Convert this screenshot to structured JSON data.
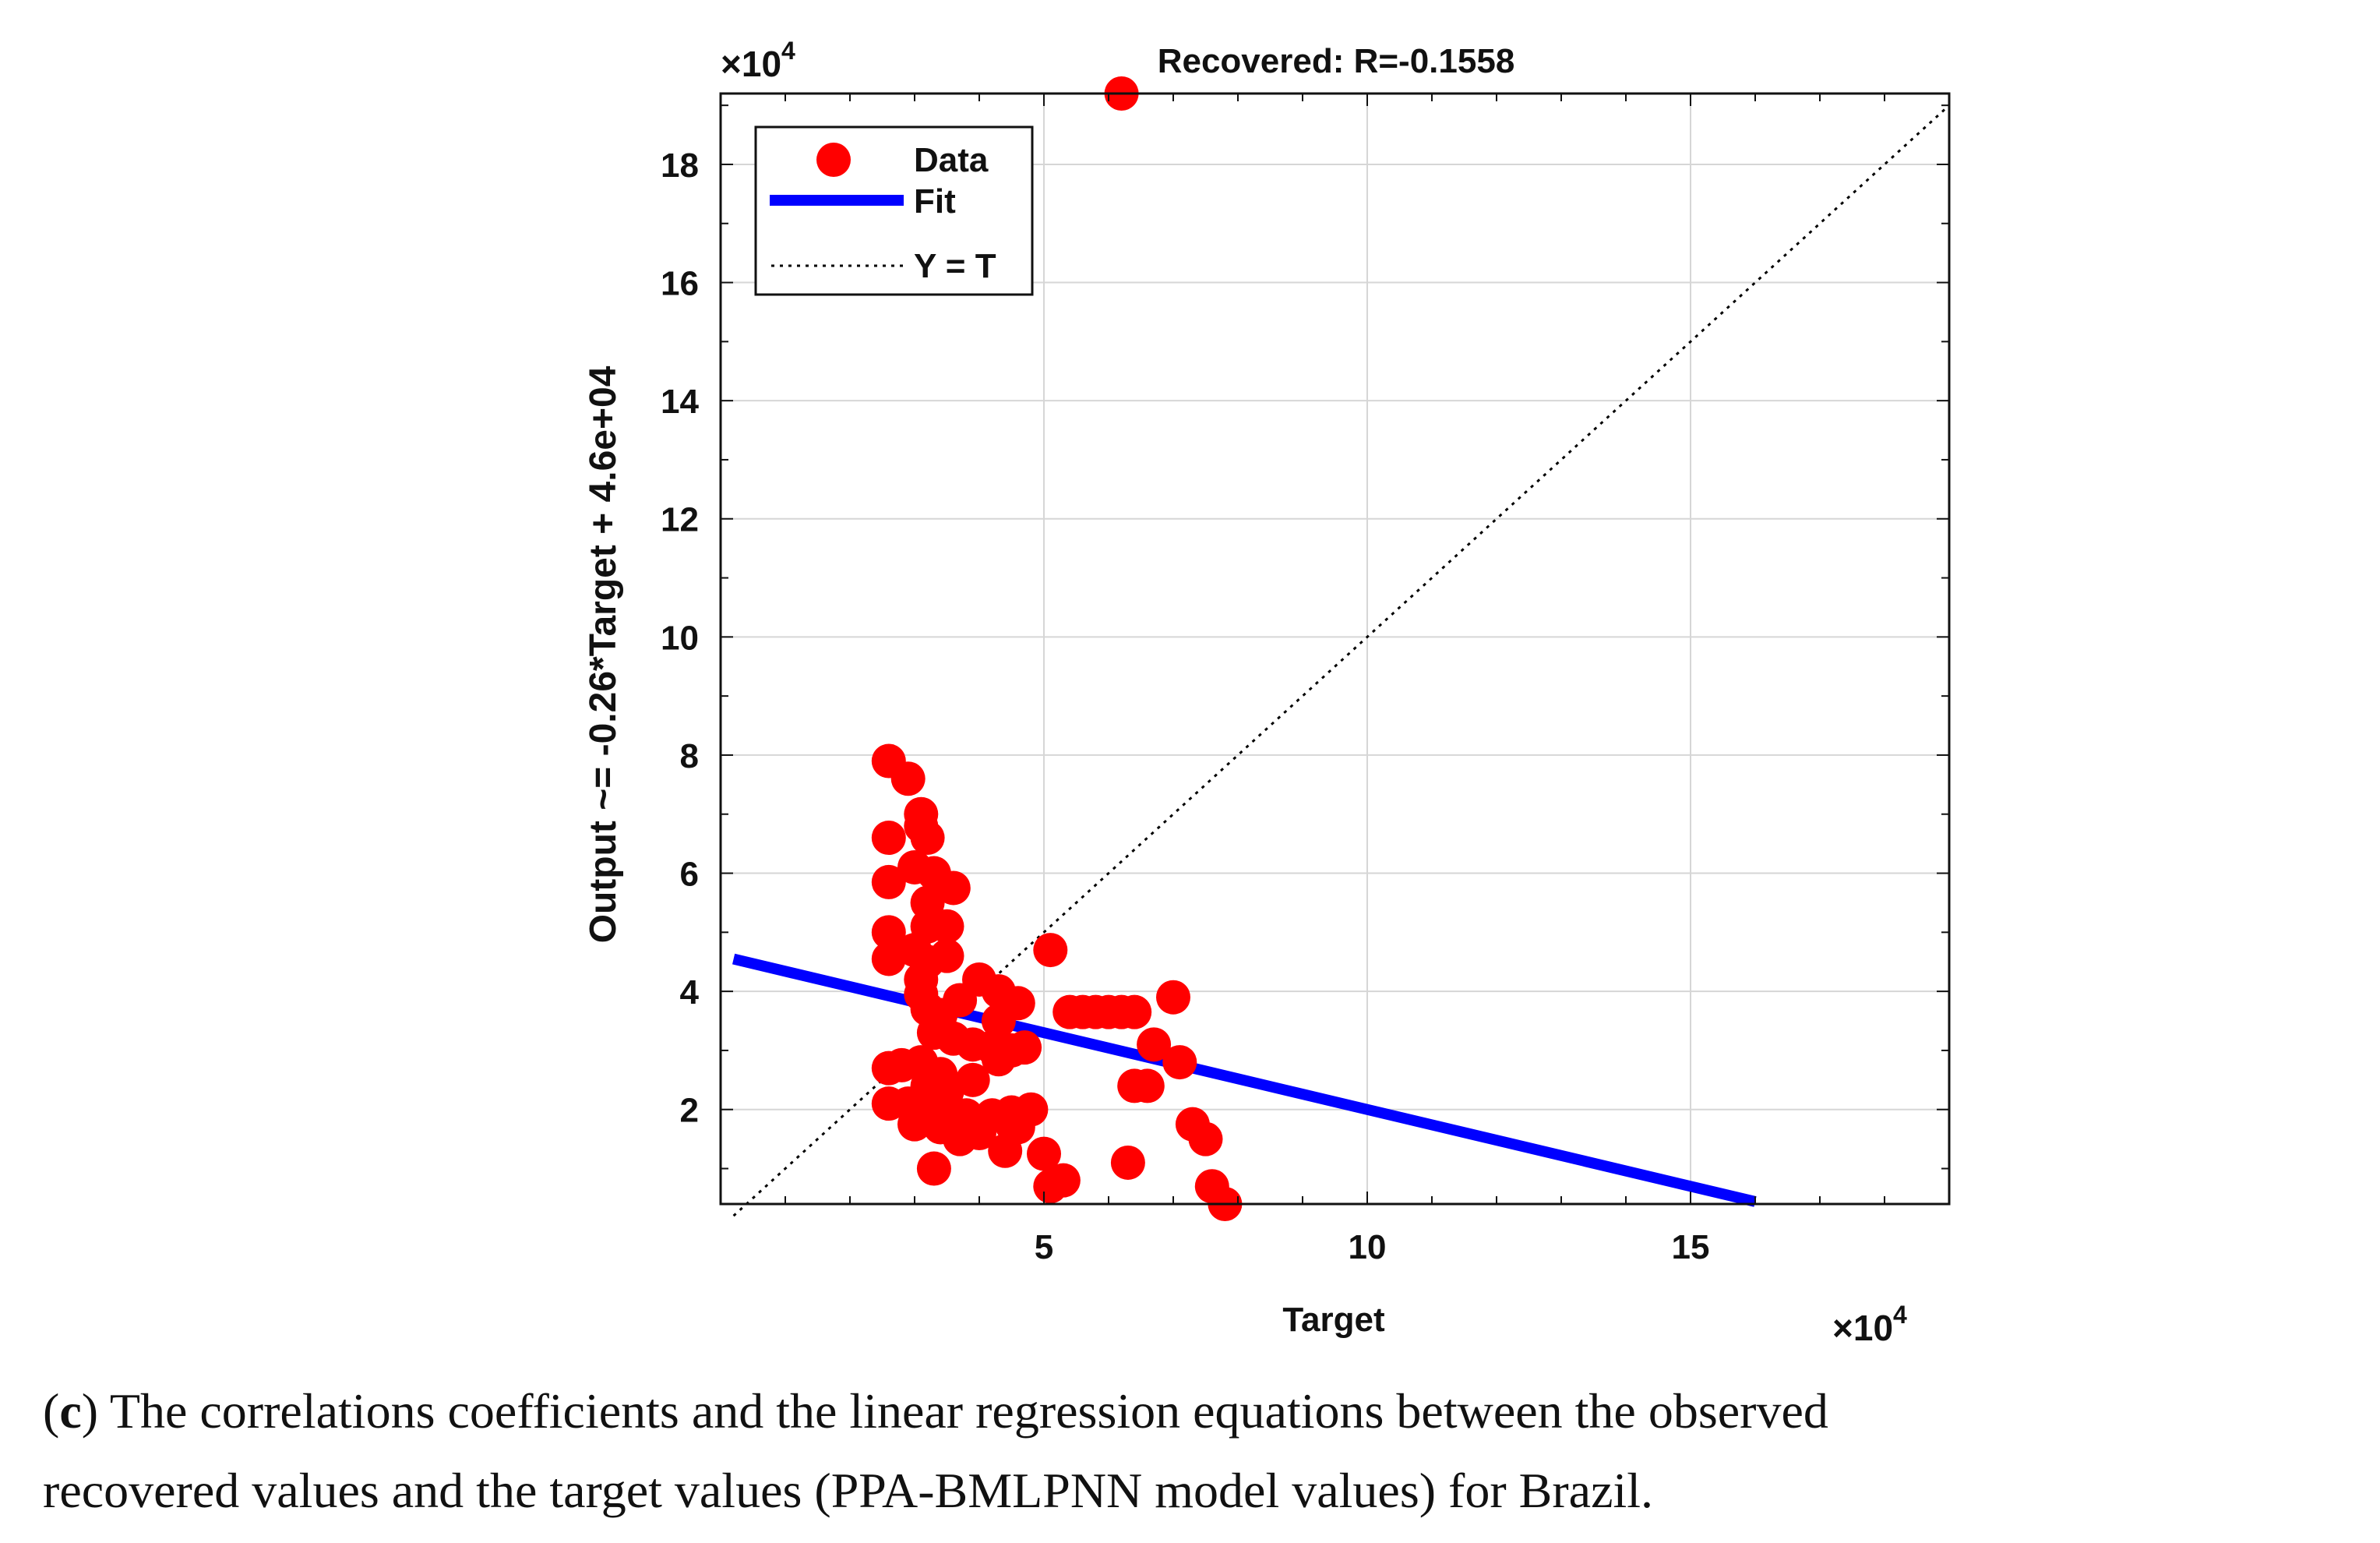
{
  "chart_data": {
    "type": "scatter",
    "title": "Recovered: R=-0.1558",
    "xlabel": "Target",
    "ylabel": "Output ~= -0.26*Target + 4.6e+04",
    "x_multiplier": "×10",
    "x_exponent": "4",
    "y_multiplier": "×10",
    "y_exponent": "4",
    "xlim": [
      0,
      19
    ],
    "ylim": [
      0.4,
      19.2
    ],
    "xticks": [
      5,
      10,
      15
    ],
    "xtick_labels": [
      "5",
      "10",
      "15"
    ],
    "yticks": [
      2,
      4,
      6,
      8,
      10,
      12,
      14,
      16,
      18
    ],
    "ytick_labels": [
      "2",
      "4",
      "6",
      "8",
      "10",
      "12",
      "14",
      "16",
      "18"
    ],
    "grid": true,
    "legend_position": "top-left",
    "legend": [
      {
        "label": "Data",
        "marker": "circle",
        "color": "#ff0000"
      },
      {
        "label": "Fit",
        "marker": "line",
        "color": "#0000ff"
      },
      {
        "label": "Y = T",
        "marker": "dotted",
        "color": "#000000"
      }
    ],
    "fit": {
      "slope": -0.26,
      "intercept": 4.6,
      "x_range": [
        0.2,
        16.0
      ],
      "color": "#0000ff"
    },
    "identity": {
      "x_range": [
        0.2,
        19
      ],
      "color": "#000000"
    },
    "series": [
      {
        "name": "Data",
        "color": "#ff0000",
        "points": [
          [
            6.2,
            19.2
          ],
          [
            2.6,
            7.9
          ],
          [
            2.9,
            7.6
          ],
          [
            3.1,
            7.0
          ],
          [
            3.1,
            6.8
          ],
          [
            2.6,
            6.6
          ],
          [
            3.2,
            6.6
          ],
          [
            3.0,
            6.1
          ],
          [
            3.3,
            6.0
          ],
          [
            2.6,
            5.85
          ],
          [
            3.6,
            5.75
          ],
          [
            3.2,
            5.5
          ],
          [
            3.2,
            5.1
          ],
          [
            3.5,
            5.1
          ],
          [
            2.6,
            5.0
          ],
          [
            3.0,
            4.7
          ],
          [
            3.5,
            4.6
          ],
          [
            3.2,
            4.5
          ],
          [
            2.6,
            4.55
          ],
          [
            3.1,
            4.2
          ],
          [
            4.0,
            4.2
          ],
          [
            4.3,
            4.0
          ],
          [
            3.1,
            3.95
          ],
          [
            3.7,
            3.85
          ],
          [
            4.6,
            3.8
          ],
          [
            3.2,
            3.7
          ],
          [
            3.4,
            3.6
          ],
          [
            4.3,
            3.5
          ],
          [
            5.1,
            4.7
          ],
          [
            5.4,
            3.65
          ],
          [
            5.6,
            3.65
          ],
          [
            5.8,
            3.65
          ],
          [
            6.0,
            3.65
          ],
          [
            6.2,
            3.65
          ],
          [
            6.4,
            3.65
          ],
          [
            7.0,
            3.9
          ],
          [
            3.3,
            3.3
          ],
          [
            3.6,
            3.2
          ],
          [
            3.9,
            3.1
          ],
          [
            4.2,
            3.05
          ],
          [
            4.5,
            3.0
          ],
          [
            4.7,
            3.05
          ],
          [
            4.3,
            2.85
          ],
          [
            6.7,
            3.1
          ],
          [
            7.1,
            2.8
          ],
          [
            2.6,
            2.7
          ],
          [
            2.8,
            2.75
          ],
          [
            3.1,
            2.8
          ],
          [
            3.4,
            2.6
          ],
          [
            3.9,
            2.5
          ],
          [
            3.2,
            2.4
          ],
          [
            3.5,
            2.3
          ],
          [
            6.4,
            2.4
          ],
          [
            6.6,
            2.4
          ],
          [
            2.6,
            2.1
          ],
          [
            2.9,
            2.1
          ],
          [
            3.2,
            2.0
          ],
          [
            3.5,
            2.0
          ],
          [
            3.8,
            1.9
          ],
          [
            4.2,
            1.9
          ],
          [
            4.5,
            1.95
          ],
          [
            4.8,
            2.0
          ],
          [
            4.5,
            1.75
          ],
          [
            3.0,
            1.75
          ],
          [
            3.4,
            1.7
          ],
          [
            3.7,
            1.5
          ],
          [
            4.0,
            1.6
          ],
          [
            4.4,
            1.3
          ],
          [
            4.6,
            1.7
          ],
          [
            7.3,
            1.75
          ],
          [
            7.5,
            1.5
          ],
          [
            3.3,
            1.0
          ],
          [
            5.0,
            1.25
          ],
          [
            6.3,
            1.1
          ],
          [
            5.1,
            0.7
          ],
          [
            5.3,
            0.8
          ],
          [
            7.6,
            0.7
          ],
          [
            7.8,
            0.4
          ]
        ]
      }
    ]
  },
  "caption": {
    "label": "c",
    "paren_open": "(",
    "paren_close": ")",
    "line1": " The correlations coefficients and the linear regression equations between the observed",
    "line2": "recovered values and the target values (PPA-BMLPNN model values) for Brazil."
  }
}
